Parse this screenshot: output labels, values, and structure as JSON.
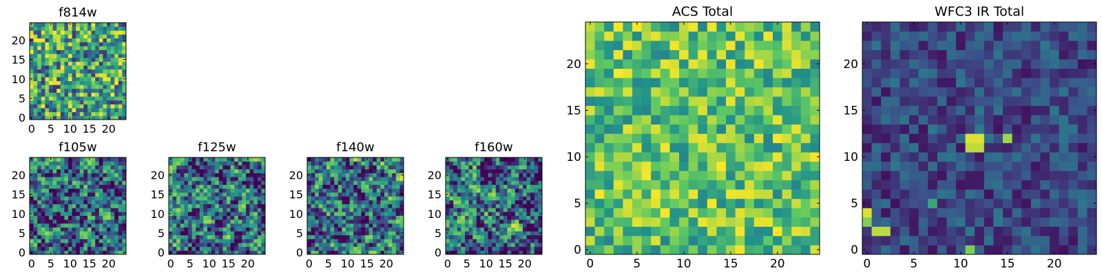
{
  "chart_data": [
    {
      "type": "heatmap",
      "title": "f814w",
      "size": 25,
      "xticks": [
        0,
        5,
        10,
        15,
        20
      ],
      "yticks": [
        0,
        5,
        10,
        15,
        20
      ],
      "colormap": "viridis",
      "vrange": [
        0,
        1
      ],
      "seed": 11,
      "values": []
    },
    {
      "type": "heatmap",
      "title": "f105w",
      "size": 25,
      "xticks": [
        0,
        5,
        10,
        15,
        20
      ],
      "yticks": [
        0,
        5,
        10,
        15,
        20
      ],
      "colormap": "viridis",
      "vrange": [
        0,
        1
      ],
      "seed": 23,
      "values": []
    },
    {
      "type": "heatmap",
      "title": "f125w",
      "size": 25,
      "xticks": [
        0,
        5,
        10,
        15,
        20
      ],
      "yticks": [
        0,
        5,
        10,
        15,
        20
      ],
      "colormap": "viridis",
      "vrange": [
        0,
        1
      ],
      "seed": 37,
      "values": []
    },
    {
      "type": "heatmap",
      "title": "f140w",
      "size": 25,
      "xticks": [
        0,
        5,
        10,
        15,
        20
      ],
      "yticks": [
        0,
        5,
        10,
        15,
        20
      ],
      "colormap": "viridis",
      "vrange": [
        0,
        1
      ],
      "seed": 41,
      "values": []
    },
    {
      "type": "heatmap",
      "title": "f160w",
      "size": 25,
      "xticks": [
        0,
        5,
        10,
        15,
        20
      ],
      "yticks": [
        0,
        5,
        10,
        15,
        20
      ],
      "colormap": "viridis",
      "vrange": [
        0,
        1
      ],
      "seed": 53,
      "values": []
    },
    {
      "type": "heatmap",
      "title": "ACS Total",
      "size": 25,
      "xticks": [
        0,
        5,
        10,
        15,
        20
      ],
      "yticks": [
        0,
        5,
        10,
        15,
        20
      ],
      "colormap": "viridis",
      "vrange": [
        0,
        1
      ],
      "seed": 67,
      "values": []
    },
    {
      "type": "heatmap",
      "title": "WFC3 IR Total",
      "size": 25,
      "xticks": [
        0,
        5,
        10,
        15,
        20
      ],
      "yticks": [
        0,
        5,
        10,
        15,
        20
      ],
      "colormap": "viridis",
      "vrange": [
        0,
        1
      ],
      "seed": 79,
      "values": []
    }
  ],
  "colors": {
    "axis": "#000000",
    "background": "#ffffff",
    "viridis_stops": [
      "#440154",
      "#3b528b",
      "#21918c",
      "#5ec962",
      "#fde725"
    ]
  }
}
